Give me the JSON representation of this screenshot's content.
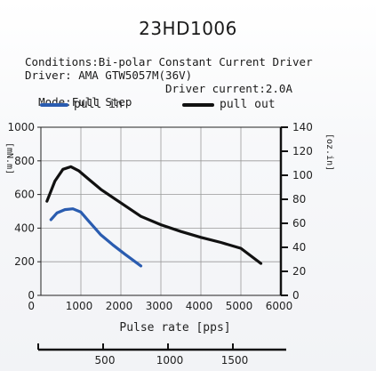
{
  "title": "23HD1006",
  "conditions": {
    "line1": "Conditions:Bi-polar Constant Current Driver",
    "line2": "Driver: AMA GTW5057M(36V)",
    "mode": "Mode:Full Step",
    "current": "Driver current:2.0A"
  },
  "colors": {
    "pull_in": "#2a5cb0",
    "pull_out": "#111111",
    "grid": "#999999"
  },
  "chart_data": {
    "type": "line",
    "xlabel": "Pulse rate [pps]",
    "ylabel_left": "[mN.m]",
    "ylabel_right": "[oz.in]",
    "xlim": [
      0,
      6000
    ],
    "ylim": [
      0,
      1000
    ],
    "y2lim": [
      0,
      140
    ],
    "x_ticks": [
      1000,
      2000,
      3000,
      4000,
      5000,
      6000
    ],
    "x_tick_labels": [
      "1000",
      "2000",
      "3000",
      "4000",
      "5000",
      "6000"
    ],
    "x_origin_label": "0",
    "y_ticks": [
      0,
      200,
      400,
      600,
      800,
      1000
    ],
    "y2_ticks": [
      0,
      20,
      40,
      60,
      80,
      100,
      120,
      140
    ],
    "x2_ticks": [
      500,
      1000,
      1500
    ],
    "x2_tick_labels": [
      "500",
      "1000",
      "1500"
    ],
    "legend_position": "top",
    "series": [
      {
        "name": "pull in",
        "key": "pull_in",
        "x": [
          250,
          400,
          600,
          800,
          1000,
          1200,
          1500,
          1800,
          2100,
          2500
        ],
        "y": [
          450,
          490,
          510,
          515,
          495,
          440,
          360,
          300,
          245,
          175
        ]
      },
      {
        "name": "pull out",
        "key": "pull_out",
        "x": [
          150,
          350,
          550,
          750,
          950,
          1200,
          1500,
          2000,
          2500,
          3000,
          3500,
          4000,
          4500,
          5000,
          5500
        ],
        "y": [
          560,
          680,
          750,
          765,
          740,
          690,
          630,
          550,
          470,
          420,
          380,
          345,
          315,
          280,
          190
        ]
      }
    ]
  }
}
